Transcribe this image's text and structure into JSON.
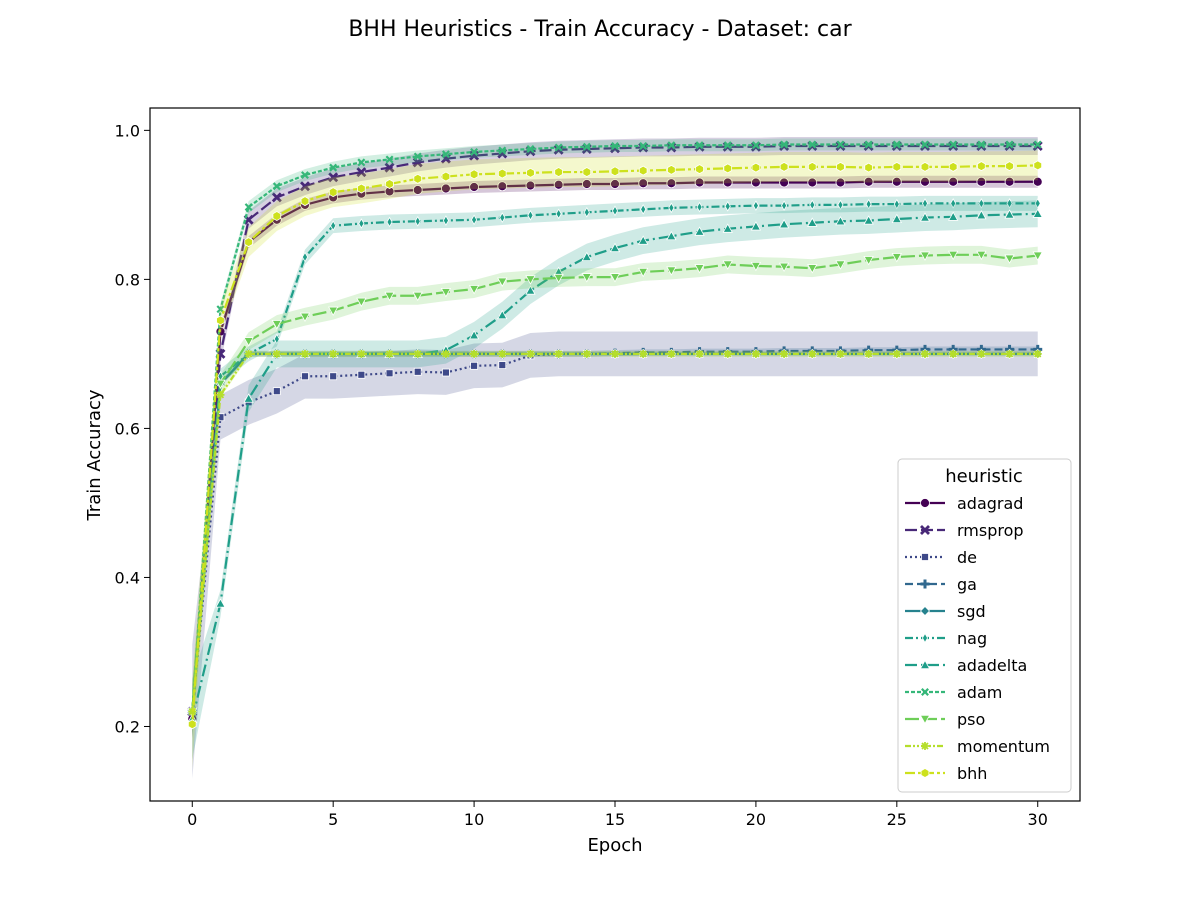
{
  "chart_data": {
    "type": "line",
    "title": "BHH Heuristics - Train Accuracy - Dataset: car",
    "xlabel": "Epoch",
    "ylabel": "Train Accuracy",
    "xlim": [
      -1.5,
      31.5
    ],
    "ylim": [
      0.1,
      1.03
    ],
    "xticks": [
      0,
      5,
      10,
      15,
      20,
      25,
      30
    ],
    "yticks": [
      0.2,
      0.4,
      0.6,
      0.8,
      1.0
    ],
    "xtick_labels": [
      "0",
      "5",
      "10",
      "15",
      "20",
      "25",
      "30"
    ],
    "ytick_labels": [
      "0.2",
      "0.4",
      "0.6",
      "0.8",
      "1.0"
    ],
    "grid": false,
    "legend": {
      "title": "heuristic",
      "placement": "lower-right"
    },
    "x": [
      0,
      1,
      2,
      3,
      4,
      5,
      6,
      7,
      8,
      9,
      10,
      11,
      12,
      13,
      14,
      15,
      16,
      17,
      18,
      19,
      20,
      21,
      22,
      23,
      24,
      25,
      26,
      27,
      28,
      29,
      30
    ],
    "series": [
      {
        "name": "adagrad",
        "color": "#440154",
        "marker": "circle",
        "dash": "",
        "band": 0.008,
        "values": [
          0.21,
          0.73,
          0.85,
          0.88,
          0.9,
          0.91,
          0.915,
          0.918,
          0.92,
          0.922,
          0.924,
          0.925,
          0.926,
          0.927,
          0.928,
          0.928,
          0.929,
          0.929,
          0.93,
          0.93,
          0.93,
          0.93,
          0.93,
          0.93,
          0.931,
          0.931,
          0.931,
          0.931,
          0.931,
          0.931,
          0.931
        ]
      },
      {
        "name": "rmsprop",
        "color": "#482878",
        "marker": "x",
        "dash": "12,4",
        "band": 0.012,
        "values": [
          0.22,
          0.7,
          0.88,
          0.91,
          0.925,
          0.937,
          0.944,
          0.95,
          0.957,
          0.962,
          0.966,
          0.969,
          0.972,
          0.974,
          0.975,
          0.976,
          0.977,
          0.977,
          0.978,
          0.978,
          0.978,
          0.979,
          0.979,
          0.979,
          0.979,
          0.979,
          0.979,
          0.979,
          0.979,
          0.979,
          0.979
        ]
      },
      {
        "name": "de",
        "color": "#3e4989",
        "marker": "square",
        "dash": "2,3",
        "band": 0.03,
        "values": [
          0.22,
          0.615,
          0.635,
          0.65,
          0.67,
          0.67,
          0.672,
          0.674,
          0.676,
          0.675,
          0.684,
          0.685,
          0.698,
          0.7,
          0.7,
          0.7,
          0.7,
          0.7,
          0.7,
          0.7,
          0.7,
          0.7,
          0.7,
          0.7,
          0.7,
          0.7,
          0.7,
          0.7,
          0.7,
          0.7,
          0.7
        ]
      },
      {
        "name": "ga",
        "color": "#31688e",
        "marker": "plus",
        "dash": "8,4",
        "band": 0.004,
        "values": [
          0.22,
          0.66,
          0.7,
          0.7,
          0.7,
          0.7,
          0.7,
          0.7,
          0.7,
          0.7,
          0.7,
          0.7,
          0.7,
          0.7,
          0.7,
          0.701,
          0.702,
          0.702,
          0.703,
          0.703,
          0.703,
          0.704,
          0.704,
          0.704,
          0.705,
          0.705,
          0.706,
          0.706,
          0.706,
          0.706,
          0.706
        ]
      },
      {
        "name": "sgd",
        "color": "#26828e",
        "marker": "diamond",
        "dash": "",
        "band": 0.003,
        "values": [
          0.22,
          0.66,
          0.7,
          0.7,
          0.7,
          0.7,
          0.7,
          0.7,
          0.7,
          0.7,
          0.7,
          0.7,
          0.7,
          0.7,
          0.7,
          0.7,
          0.7,
          0.7,
          0.7,
          0.7,
          0.7,
          0.7,
          0.7,
          0.7,
          0.7,
          0.7,
          0.7,
          0.7,
          0.7,
          0.7,
          0.7
        ]
      },
      {
        "name": "nag",
        "color": "#1f9e89",
        "marker": "thin-diamond",
        "dash": "8,3,2,3",
        "band": 0.01,
        "values": [
          0.22,
          0.67,
          0.7,
          0.72,
          0.83,
          0.872,
          0.875,
          0.877,
          0.878,
          0.879,
          0.88,
          0.883,
          0.886,
          0.888,
          0.89,
          0.892,
          0.894,
          0.896,
          0.897,
          0.898,
          0.899,
          0.899,
          0.9,
          0.9,
          0.901,
          0.901,
          0.902,
          0.902,
          0.902,
          0.902,
          0.902
        ]
      },
      {
        "name": "adadelta",
        "color": "#1f9e89",
        "marker": "triangle-up",
        "dash": "12,4,2,4",
        "band": 0.018,
        "values": [
          0.21,
          0.365,
          0.64,
          0.7,
          0.7,
          0.7,
          0.7,
          0.7,
          0.7,
          0.705,
          0.725,
          0.752,
          0.785,
          0.81,
          0.83,
          0.842,
          0.852,
          0.858,
          0.864,
          0.868,
          0.871,
          0.874,
          0.876,
          0.878,
          0.879,
          0.881,
          0.883,
          0.884,
          0.886,
          0.887,
          0.888
        ]
      },
      {
        "name": "adam",
        "color": "#35b779",
        "marker": "x-small",
        "dash": "4,2",
        "band": 0.008,
        "values": [
          0.22,
          0.76,
          0.897,
          0.925,
          0.94,
          0.95,
          0.957,
          0.961,
          0.965,
          0.968,
          0.971,
          0.973,
          0.975,
          0.977,
          0.978,
          0.979,
          0.979,
          0.98,
          0.98,
          0.98,
          0.98,
          0.981,
          0.981,
          0.981,
          0.981,
          0.981,
          0.981,
          0.981,
          0.981,
          0.981,
          0.981
        ]
      },
      {
        "name": "pso",
        "color": "#6ece58",
        "marker": "triangle-down",
        "dash": "14,4",
        "band": 0.012,
        "values": [
          0.22,
          0.66,
          0.717,
          0.74,
          0.75,
          0.758,
          0.77,
          0.778,
          0.778,
          0.783,
          0.787,
          0.797,
          0.8,
          0.802,
          0.803,
          0.803,
          0.81,
          0.812,
          0.815,
          0.82,
          0.818,
          0.817,
          0.815,
          0.82,
          0.826,
          0.83,
          0.832,
          0.833,
          0.833,
          0.828,
          0.832
        ]
      },
      {
        "name": "momentum",
        "color": "#b5de2b",
        "marker": "plus-x",
        "dash": "6,2,2,2,2,2",
        "band": 0.004,
        "values": [
          0.22,
          0.645,
          0.7,
          0.7,
          0.7,
          0.7,
          0.7,
          0.7,
          0.7,
          0.7,
          0.7,
          0.7,
          0.7,
          0.7,
          0.7,
          0.7,
          0.7,
          0.7,
          0.7,
          0.7,
          0.7,
          0.7,
          0.7,
          0.7,
          0.7,
          0.7,
          0.7,
          0.7,
          0.7,
          0.7,
          0.7
        ]
      },
      {
        "name": "bhh",
        "color": "#cde11d",
        "marker": "hexagon",
        "dash": "10,3,3,3",
        "band": 0.02,
        "values": [
          0.203,
          0.745,
          0.85,
          0.885,
          0.905,
          0.917,
          0.922,
          0.928,
          0.935,
          0.938,
          0.941,
          0.942,
          0.943,
          0.944,
          0.944,
          0.945,
          0.946,
          0.947,
          0.948,
          0.949,
          0.95,
          0.951,
          0.951,
          0.951,
          0.95,
          0.951,
          0.951,
          0.951,
          0.952,
          0.952,
          0.953
        ]
      }
    ]
  }
}
